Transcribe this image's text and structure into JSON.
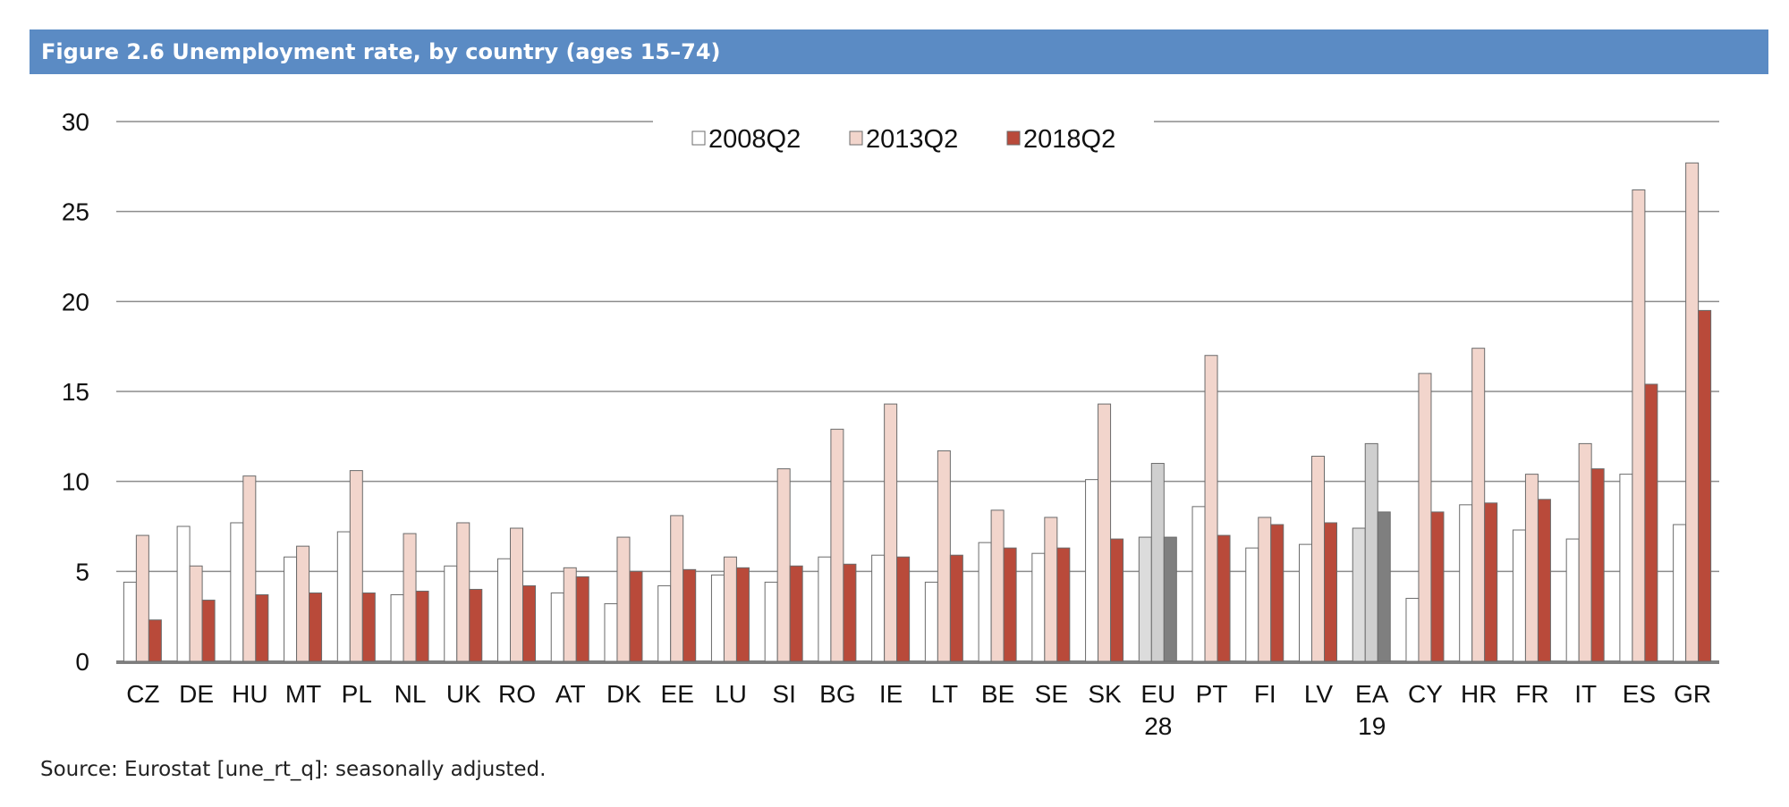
{
  "figure": {
    "title": "Figure 2.6 Unemployment rate, by country (ages 15–74)",
    "source": "Source: Eurostat [une_rt_q]: seasonally adjusted."
  },
  "chart_data": {
    "type": "bar",
    "title": "Figure 2.6 Unemployment rate, by country (ages 15–74)",
    "xlabel": "",
    "ylabel": "",
    "ylim": [
      0,
      30
    ],
    "yticks": [
      0,
      5,
      10,
      15,
      20,
      25,
      30
    ],
    "grid": true,
    "legend_position": "top-center",
    "categories": [
      "CZ",
      "DE",
      "HU",
      "MT",
      "PL",
      "NL",
      "UK",
      "RO",
      "AT",
      "DK",
      "EE",
      "LU",
      "SI",
      "BG",
      "IE",
      "LT",
      "BE",
      "SE",
      "SK",
      "EU 28",
      "PT",
      "FI",
      "LV",
      "EA 19",
      "CY",
      "HR",
      "FR",
      "IT",
      "ES",
      "GR"
    ],
    "highlight_categories": [
      "EU 28",
      "EA 19"
    ],
    "series": [
      {
        "name": "2008Q2",
        "color": "#ffffff",
        "highlight_color": "#dcdcdc",
        "values": [
          4.4,
          7.5,
          7.7,
          5.8,
          7.2,
          3.7,
          5.3,
          5.7,
          3.8,
          3.2,
          4.2,
          4.8,
          4.4,
          5.8,
          5.9,
          4.4,
          6.6,
          6.0,
          10.1,
          6.9,
          8.6,
          6.3,
          6.5,
          7.4,
          3.5,
          8.7,
          7.3,
          6.8,
          10.4,
          7.6
        ]
      },
      {
        "name": "2013Q2",
        "color": "#f2d5cc",
        "highlight_color": "#cfcfcf",
        "values": [
          7.0,
          5.3,
          10.3,
          6.4,
          10.6,
          7.1,
          7.7,
          7.4,
          5.2,
          6.9,
          8.1,
          5.8,
          10.7,
          12.9,
          14.3,
          11.7,
          8.4,
          8.0,
          14.3,
          11.0,
          17.0,
          8.0,
          11.4,
          12.1,
          16.0,
          17.4,
          10.4,
          12.1,
          26.2,
          27.7
        ]
      },
      {
        "name": "2018Q2",
        "color": "#b94a3a",
        "highlight_color": "#7f7f7f",
        "values": [
          2.3,
          3.4,
          3.7,
          3.8,
          3.8,
          3.9,
          4.0,
          4.2,
          4.7,
          5.0,
          5.1,
          5.2,
          5.3,
          5.4,
          5.8,
          5.9,
          6.3,
          6.3,
          6.8,
          6.9,
          7.0,
          7.6,
          7.7,
          8.3,
          8.3,
          8.8,
          9.0,
          10.7,
          15.4,
          19.5
        ]
      }
    ]
  }
}
